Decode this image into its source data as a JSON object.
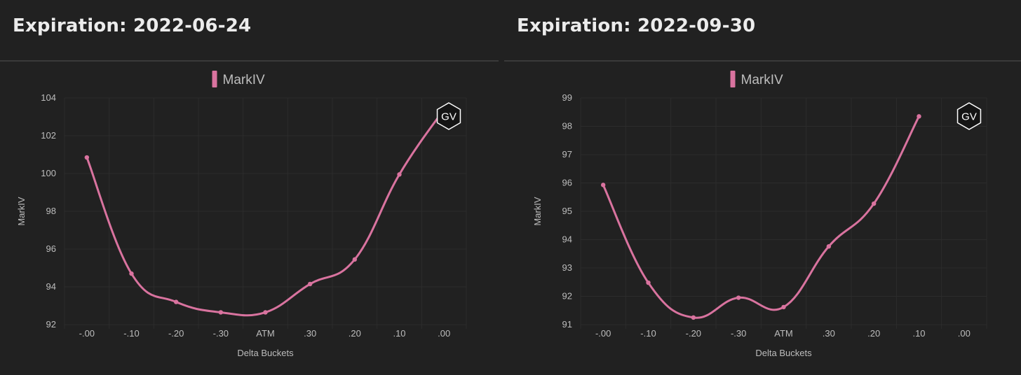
{
  "colors": {
    "background": "#212121",
    "series": "#d9739f",
    "grid": "#2c2c2c",
    "text": "#bdbdbd"
  },
  "badge": {
    "text": "GV",
    "icon": "hexagon-logo-icon"
  },
  "chart_data": [
    {
      "type": "line",
      "title": "Expiration: 2022-06-24",
      "xlabel": "Delta Buckets",
      "ylabel": "MarkIV",
      "legend": "top-center",
      "grid": true,
      "categories": [
        "-.00",
        "-.10",
        "-.20",
        "-.30",
        "ATM",
        ".30",
        ".20",
        ".10",
        ".00"
      ],
      "ylim": [
        92,
        104
      ],
      "yticks": [
        "104",
        "102",
        "100",
        "98",
        "96",
        "94",
        "92"
      ],
      "series": [
        {
          "name": "MarkIV",
          "values": [
            100.85,
            94.7,
            93.2,
            92.65,
            92.65,
            94.15,
            95.45,
            99.95,
            103.4
          ]
        }
      ]
    },
    {
      "type": "line",
      "title": "Expiration: 2022-09-30",
      "xlabel": "Delta Buckets",
      "ylabel": "MarkIV",
      "legend": "top-center",
      "grid": true,
      "categories": [
        "-.00",
        "-.10",
        "-.20",
        "-.30",
        "ATM",
        ".30",
        ".20",
        ".10",
        ".00"
      ],
      "ylim": [
        91,
        99
      ],
      "yticks": [
        "99",
        "98",
        "97",
        "96",
        "95",
        "94",
        "93",
        "92",
        "91"
      ],
      "series": [
        {
          "name": "MarkIV",
          "values": [
            95.93,
            92.48,
            91.25,
            91.95,
            91.62,
            93.76,
            95.27,
            98.35,
            null
          ]
        }
      ]
    }
  ]
}
